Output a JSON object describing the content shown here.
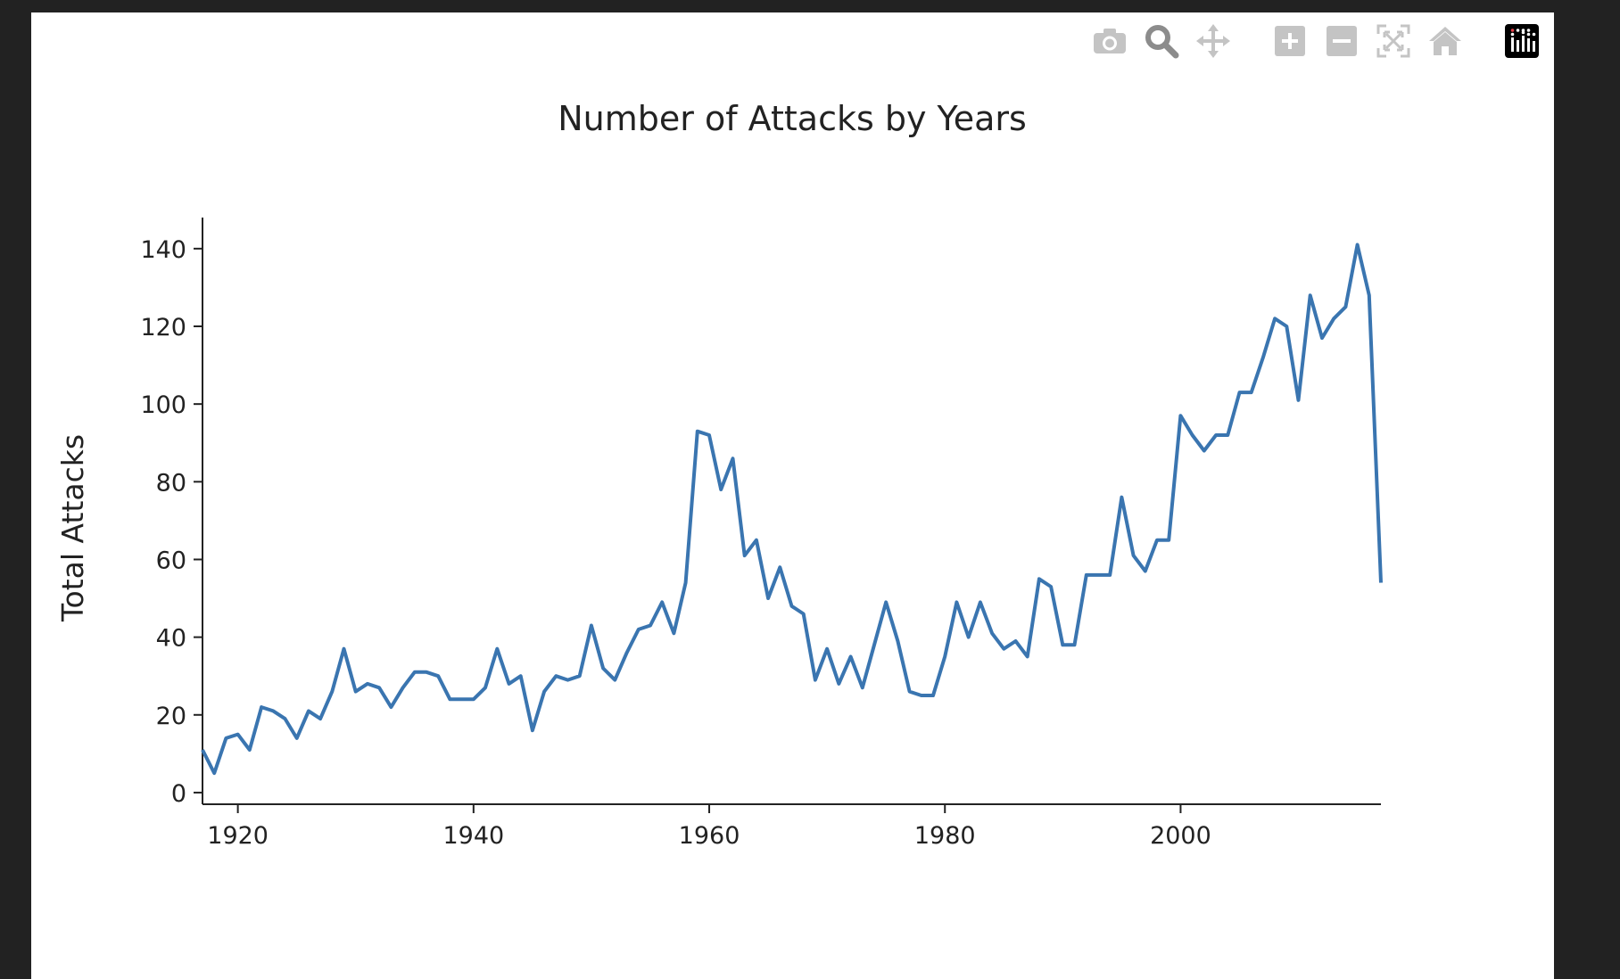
{
  "colors": {
    "background": "#222222",
    "panel": "#ffffff",
    "line": "#3a75b0",
    "axis": "#222222",
    "modebar_icon": "#c4c4c4",
    "modebar_icon_active": "#8c8c8c",
    "logo_bg": "#000000"
  },
  "modebar": {
    "buttons": [
      {
        "name": "download-png-button",
        "icon": "camera-icon"
      },
      {
        "name": "zoom-button",
        "icon": "zoom-magnifier-icon"
      },
      {
        "name": "pan-button",
        "icon": "pan-arrows-icon"
      },
      {
        "name": "zoom-in-button",
        "icon": "plus-icon"
      },
      {
        "name": "zoom-out-button",
        "icon": "minus-icon"
      },
      {
        "name": "autoscale-button",
        "icon": "autoscale-icon"
      },
      {
        "name": "reset-axes-button",
        "icon": "home-icon"
      },
      {
        "name": "plotly-logo-button",
        "icon": "plotly-logo-icon"
      }
    ]
  },
  "chart_data": {
    "type": "line",
    "title": "Number of Attacks by Years",
    "xlabel": "",
    "ylabel": "Total Attacks",
    "xlim": [
      1917,
      2017
    ],
    "ylim": [
      -3,
      148
    ],
    "xticks": [
      1920,
      1940,
      1960,
      1980,
      2000
    ],
    "yticks": [
      0,
      20,
      40,
      60,
      80,
      100,
      120,
      140
    ],
    "grid": false,
    "legend": "none",
    "x": [
      1917,
      1918,
      1919,
      1920,
      1921,
      1922,
      1923,
      1924,
      1925,
      1926,
      1927,
      1928,
      1929,
      1930,
      1931,
      1932,
      1933,
      1934,
      1935,
      1936,
      1937,
      1938,
      1939,
      1940,
      1941,
      1942,
      1943,
      1944,
      1945,
      1946,
      1947,
      1948,
      1949,
      1950,
      1951,
      1952,
      1953,
      1954,
      1955,
      1956,
      1957,
      1958,
      1959,
      1960,
      1961,
      1962,
      1963,
      1964,
      1965,
      1966,
      1967,
      1968,
      1969,
      1970,
      1971,
      1972,
      1973,
      1974,
      1975,
      1976,
      1977,
      1978,
      1979,
      1980,
      1981,
      1982,
      1983,
      1984,
      1985,
      1986,
      1987,
      1988,
      1989,
      1990,
      1991,
      1992,
      1993,
      1994,
      1995,
      1996,
      1997,
      1998,
      1999,
      2000,
      2001,
      2002,
      2003,
      2004,
      2005,
      2006,
      2007,
      2008,
      2009,
      2010,
      2011,
      2012,
      2013,
      2014,
      2015,
      2016,
      2017
    ],
    "y": [
      11,
      5,
      14,
      15,
      11,
      22,
      21,
      19,
      14,
      21,
      19,
      26,
      37,
      26,
      28,
      27,
      22,
      27,
      31,
      31,
      30,
      24,
      24,
      24,
      27,
      37,
      28,
      30,
      16,
      26,
      30,
      29,
      30,
      43,
      32,
      29,
      36,
      42,
      43,
      49,
      41,
      54,
      93,
      92,
      78,
      86,
      61,
      65,
      50,
      58,
      48,
      46,
      29,
      37,
      28,
      35,
      27,
      38,
      49,
      39,
      26,
      25,
      25,
      35,
      49,
      40,
      49,
      41,
      37,
      39,
      35,
      55,
      53,
      38,
      38,
      56,
      56,
      56,
      76,
      61,
      57,
      65,
      65,
      97,
      92,
      88,
      92,
      92,
      103,
      103,
      112,
      122,
      120,
      101,
      128,
      117,
      122,
      125,
      141,
      128,
      54
    ]
  }
}
